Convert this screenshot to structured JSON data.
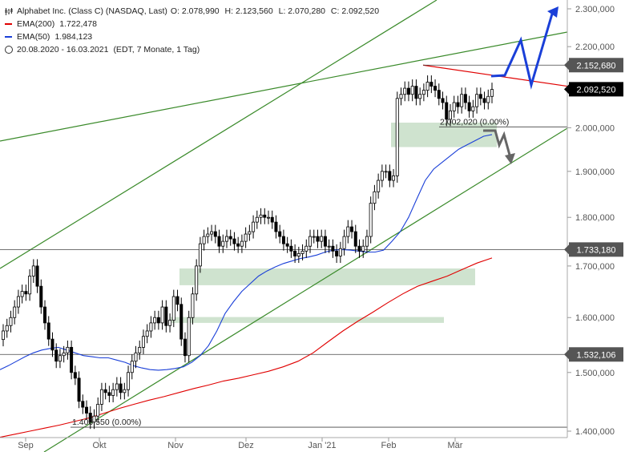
{
  "legend": {
    "symbol": "Alphabet Inc. (Class C) (NASDAQ, Last)",
    "ohlc": {
      "o": "O: 2.078,990",
      "h": "H: 2.123,560",
      "l": "L: 2.070,280",
      "c": "C: 2.092,520"
    },
    "ema200_label": "EMA(200)",
    "ema200_value": "1.722,478",
    "ema50_label": "EMA(50)",
    "ema50_value": "1.984,123",
    "period": "20.08.2020 - 16.03.2021",
    "period_note": "(EDT, 7 Monate, 1 Tag)"
  },
  "colors": {
    "candle": "#000000",
    "ema200": "#e00000",
    "ema50": "#1a3fd8",
    "trendline": "#3a8a2a",
    "zone": "#cfe3cf",
    "arrow_up": "#1a3fd8",
    "arrow_down": "#666666",
    "resistance": "#e00000",
    "price_box": "#555555",
    "current_box": "#000000"
  },
  "chart_data": {
    "type": "candlestick",
    "instrument": "Alphabet Inc. (Class C)",
    "x_axis": {
      "labels": [
        "Sep",
        "Okt",
        "Nov",
        "Dez",
        "Jan '21",
        "Feb",
        "Mär"
      ]
    },
    "y_axis": {
      "labels": [
        "2.300,000",
        "2.200,000",
        "2.100,000",
        "2.000,000",
        "1.900,000",
        "1.800,000",
        "1.700,000",
        "1.600,000",
        "1.500,000",
        "1.400,000"
      ],
      "values": [
        2300,
        2200,
        2100,
        2000,
        1900,
        1800,
        1700,
        1600,
        1500,
        1400
      ],
      "ylim": [
        1390,
        2320
      ],
      "scale": "log"
    },
    "markers": [
      {
        "label": "2.152,680",
        "value": 2152.68,
        "style": "gray"
      },
      {
        "label": "2.092,520",
        "value": 2092.52,
        "style": "current"
      },
      {
        "label": "1.733,180",
        "value": 1733.18,
        "style": "gray"
      },
      {
        "label": "1.532,106",
        "value": 1532.106,
        "style": "gray"
      }
    ],
    "annotations": [
      {
        "text": "2.002,020 (0.00%)",
        "value": 2002.02
      },
      {
        "text": "1.406,550 (0.00%)",
        "value": 1406.55
      }
    ],
    "closes": [
      1575,
      1585,
      1600,
      1620,
      1640,
      1650,
      1645,
      1680,
      1700,
      1660,
      1620,
      1590,
      1560,
      1540,
      1520,
      1530,
      1535,
      1545,
      1500,
      1490,
      1450,
      1440,
      1430,
      1415,
      1425,
      1445,
      1470,
      1465,
      1460,
      1470,
      1480,
      1465,
      1470,
      1500,
      1520,
      1535,
      1545,
      1565,
      1575,
      1590,
      1600,
      1590,
      1620,
      1585,
      1595,
      1640,
      1625,
      1560,
      1530,
      1600,
      1645,
      1700,
      1745,
      1760,
      1765,
      1770,
      1760,
      1740,
      1750,
      1760,
      1755,
      1745,
      1740,
      1750,
      1765,
      1770,
      1790,
      1800,
      1805,
      1800,
      1800,
      1790,
      1770,
      1760,
      1745,
      1740,
      1730,
      1720,
      1725,
      1730,
      1740,
      1760,
      1760,
      1750,
      1760,
      1740,
      1740,
      1730,
      1720,
      1735,
      1760,
      1780,
      1770,
      1740,
      1730,
      1740,
      1760,
      1830,
      1855,
      1880,
      1900,
      1900,
      1880,
      1890,
      2070,
      2080,
      2095,
      2080,
      2100,
      2070,
      2080,
      2090,
      2110,
      2100,
      2090,
      2070,
      2060,
      2020,
      2040,
      2060,
      2050,
      2080,
      2060,
      2040,
      2050,
      2080,
      2070,
      2060,
      2075,
      2092
    ],
    "ema50": [
      1505,
      1512,
      1520,
      1528,
      1535,
      1540,
      1543,
      1545,
      1540,
      1535,
      1530,
      1528,
      1526,
      1526,
      1522,
      1518,
      1512,
      1508,
      1505,
      1504,
      1505,
      1507,
      1510,
      1518,
      1530,
      1548,
      1575,
      1608,
      1630,
      1650,
      1665,
      1680,
      1690,
      1698,
      1705,
      1710,
      1715,
      1718,
      1722,
      1728,
      1732,
      1733,
      1732,
      1730,
      1728,
      1728,
      1732,
      1750,
      1770,
      1800,
      1840,
      1880,
      1905,
      1920,
      1935,
      1950,
      1960,
      1970,
      1980,
      1984
    ],
    "ema200": [
      1390,
      1395,
      1400,
      1405,
      1410,
      1416,
      1422,
      1430,
      1438,
      1445,
      1452,
      1458,
      1465,
      1472,
      1478,
      1485,
      1490,
      1496,
      1502,
      1510,
      1520,
      1535,
      1555,
      1575,
      1593,
      1610,
      1628,
      1645,
      1660,
      1670,
      1680,
      1693,
      1706,
      1716
    ]
  }
}
